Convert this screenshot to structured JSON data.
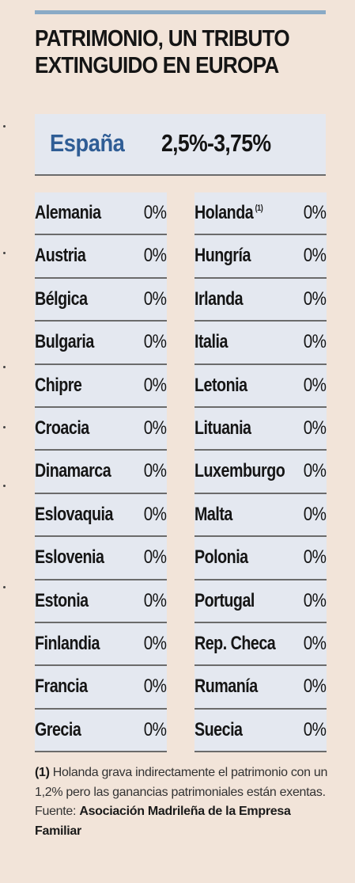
{
  "title": "PATRIMONIO, UN TRIBUTO EXTINGUIDO EN EUROPA",
  "spain": {
    "country": "España",
    "rate": "2,5%-3,75%"
  },
  "colors": {
    "accent_rule": "#8aaac6",
    "spain_label": "#2f5d95",
    "row_background": "#e4e8f0",
    "page_background": "#f2e4d9"
  },
  "countries_left": [
    {
      "name": "Alemania",
      "rate": "0%"
    },
    {
      "name": "Austria",
      "rate": "0%"
    },
    {
      "name": "Bélgica",
      "rate": "0%"
    },
    {
      "name": "Bulgaria",
      "rate": "0%"
    },
    {
      "name": "Chipre",
      "rate": "0%"
    },
    {
      "name": "Croacia",
      "rate": "0%"
    },
    {
      "name": "Dinamarca",
      "rate": "0%"
    },
    {
      "name": "Eslovaquia",
      "rate": "0%"
    },
    {
      "name": "Eslovenia",
      "rate": "0%"
    },
    {
      "name": "Estonia",
      "rate": "0%"
    },
    {
      "name": "Finlandia",
      "rate": "0%"
    },
    {
      "name": "Francia",
      "rate": "0%"
    },
    {
      "name": "Grecia",
      "rate": "0%"
    }
  ],
  "countries_right": [
    {
      "name": "Holanda",
      "note": "(1)",
      "rate": "0%"
    },
    {
      "name": "Hungría",
      "rate": "0%"
    },
    {
      "name": "Irlanda",
      "rate": "0%"
    },
    {
      "name": "Italia",
      "rate": "0%"
    },
    {
      "name": "Letonia",
      "rate": "0%"
    },
    {
      "name": "Lituania",
      "rate": "0%"
    },
    {
      "name": "Luxemburgo",
      "rate": "0%"
    },
    {
      "name": "Malta",
      "rate": "0%"
    },
    {
      "name": "Polonia",
      "rate": "0%"
    },
    {
      "name": "Portugal",
      "rate": "0%"
    },
    {
      "name": "Rep. Checa",
      "rate": "0%"
    },
    {
      "name": "Rumanía",
      "rate": "0%"
    },
    {
      "name": "Suecia",
      "rate": "0%"
    }
  ],
  "footnote": {
    "marker": "(1)",
    "text": " Holanda grava indirectamente el patrimonio con un 1,2% pero las ganancias patrimoniales están exentas. Fuente: ",
    "source": "Asociación Madrileña de la Empresa Familiar"
  }
}
